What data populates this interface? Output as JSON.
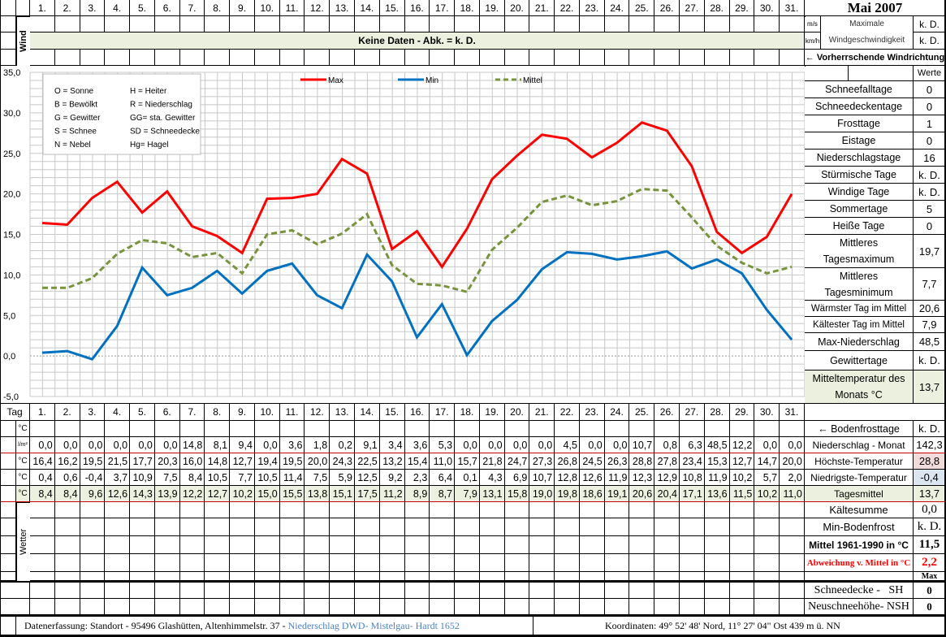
{
  "title": "Mai 2007",
  "days": [
    "1.",
    "2.",
    "3.",
    "4.",
    "5.",
    "6.",
    "7.",
    "8.",
    "9.",
    "10.",
    "11.",
    "12.",
    "13.",
    "14.",
    "15.",
    "16.",
    "17.",
    "18.",
    "19.",
    "20.",
    "21.",
    "22.",
    "23.",
    "24.",
    "25.",
    "26.",
    "27.",
    "28.",
    "29.",
    "30.",
    "31."
  ],
  "wind": {
    "label": "Wind",
    "nodata": "Keine Daten - Abk. = k. D.",
    "unit_ms": "m/s",
    "unit_kmh": "km/h",
    "max_label": "Maximale Windgeschwindigkeit",
    "max_ms": "k. D.",
    "max_kmh": "k. D.",
    "direction_label": "← Vorherrschende Windrichtung"
  },
  "chart_data": {
    "type": "line",
    "ylim": [
      -5,
      35
    ],
    "yticks": [
      "35,0",
      "30,0",
      "25,0",
      "20,0",
      "15,0",
      "10,0",
      "5,0",
      "0,0",
      "-5,0"
    ],
    "grid": true,
    "legend_placement": "top",
    "series": [
      {
        "name": "Max",
        "color": "#ff0000",
        "values": [
          16.4,
          16.2,
          19.5,
          21.5,
          17.7,
          20.3,
          16.0,
          14.8,
          12.7,
          19.4,
          19.5,
          20.0,
          24.3,
          22.5,
          13.2,
          15.4,
          11.0,
          15.7,
          21.8,
          24.7,
          27.3,
          26.8,
          24.5,
          26.3,
          28.8,
          27.8,
          23.4,
          15.3,
          12.7,
          14.7,
          20.0
        ]
      },
      {
        "name": "Min",
        "color": "#0070c0",
        "values": [
          0.4,
          0.6,
          -0.4,
          3.7,
          10.9,
          7.5,
          8.4,
          10.5,
          7.7,
          10.5,
          11.4,
          7.5,
          5.9,
          12.5,
          9.2,
          2.3,
          6.4,
          0.1,
          4.3,
          6.9,
          10.7,
          12.8,
          12.6,
          11.9,
          12.3,
          12.9,
          10.8,
          11.9,
          10.2,
          5.7,
          2.0
        ]
      },
      {
        "name": "Mittel",
        "color": "#77933c",
        "values": [
          8.4,
          8.4,
          9.6,
          12.6,
          14.3,
          13.9,
          12.2,
          12.7,
          10.2,
          15.0,
          15.5,
          13.8,
          15.1,
          17.5,
          11.2,
          8.9,
          8.7,
          7.9,
          13.1,
          15.8,
          19.0,
          19.8,
          18.6,
          19.1,
          20.6,
          20.4,
          17.1,
          13.6,
          11.5,
          10.2,
          11.0
        ]
      }
    ]
  },
  "key": [
    [
      "O = Sonne",
      "H = Heiter"
    ],
    [
      "B = Bewölkt",
      "R = Niederschlag"
    ],
    [
      "G = Gewitter",
      "GG= sta. Gewitter"
    ],
    [
      "S = Schnee",
      "SD = Schneedecke"
    ],
    [
      "N = Nebel",
      "Hg= Hagel"
    ]
  ],
  "stats_header": "Werte",
  "stats": [
    [
      "Schneefalltage",
      "0"
    ],
    [
      "Schneedeckentage",
      "0"
    ],
    [
      "Frosttage",
      "1"
    ],
    [
      "Eistage",
      "0"
    ],
    [
      "Niederschlagstage",
      "16"
    ],
    [
      "Stürmische Tage",
      "k. D."
    ],
    [
      "Windige Tage",
      "k. D."
    ],
    [
      "Sommertage",
      "5"
    ],
    [
      "Heiße Tage",
      "0"
    ],
    [
      "Mittleres Tagesmaximum",
      "19,7"
    ],
    [
      "Mittleres Tagesminimum",
      "7,7"
    ],
    [
      "Wärmster Tag im Mittel",
      "20,6"
    ],
    [
      "Kältester Tag im Mittel",
      "7,9"
    ],
    [
      "Max-Niederschlag",
      "48,5"
    ],
    [
      "Gewittertage",
      "k. D."
    ],
    [
      "Mitteltemperatur des Monats °C",
      "13,7"
    ]
  ],
  "table": {
    "tag_label": "Tag",
    "ground_unit": "°C",
    "ground_label": "← Bodenfrosttage",
    "ground_value": "k. D.",
    "rows": [
      {
        "unit": "l/m²",
        "label": "Niederschlag - Monat",
        "total": "142,3",
        "values": [
          "0,0",
          "0,0",
          "0,0",
          "0,0",
          "0,0",
          "0,0",
          "14,8",
          "8,1",
          "9,4",
          "0,0",
          "3,6",
          "1,8",
          "0,2",
          "9,1",
          "3,4",
          "3,6",
          "5,3",
          "0,0",
          "0,0",
          "0,0",
          "0,0",
          "4,5",
          "0,0",
          "0,0",
          "10,7",
          "0,8",
          "6,3",
          "48,5",
          "12,2",
          "0,0",
          "0,0"
        ]
      },
      {
        "unit": "°C",
        "label": "Höchste-Temperatur",
        "total": "28,8",
        "values": [
          "16,4",
          "16,2",
          "19,5",
          "21,5",
          "17,7",
          "20,3",
          "16,0",
          "14,8",
          "12,7",
          "19,4",
          "19,5",
          "20,0",
          "24,3",
          "22,5",
          "13,2",
          "15,4",
          "11,0",
          "15,7",
          "21,8",
          "24,7",
          "27,3",
          "26,8",
          "24,5",
          "26,3",
          "28,8",
          "27,8",
          "23,4",
          "15,3",
          "12,7",
          "14,7",
          "20,0"
        ]
      },
      {
        "unit": "°C",
        "label": "Niedrigste-Temperatur",
        "total": "-0,4",
        "values": [
          "0,4",
          "0,6",
          "-0,4",
          "3,7",
          "10,9",
          "7,5",
          "8,4",
          "10,5",
          "7,7",
          "10,5",
          "11,4",
          "7,5",
          "5,9",
          "12,5",
          "9,2",
          "2,3",
          "6,4",
          "0,1",
          "4,3",
          "6,9",
          "10,7",
          "12,8",
          "12,6",
          "11,9",
          "12,3",
          "12,9",
          "10,8",
          "11,9",
          "10,2",
          "5,7",
          "2,0"
        ]
      },
      {
        "unit": "°C",
        "label": "Tagesmittel",
        "total": "13,7",
        "values": [
          "8,4",
          "8,4",
          "9,6",
          "12,6",
          "14,3",
          "13,9",
          "12,2",
          "12,7",
          "10,2",
          "15,0",
          "15,5",
          "13,8",
          "15,1",
          "17,5",
          "11,2",
          "8,9",
          "8,7",
          "7,9",
          "13,1",
          "15,8",
          "19,0",
          "19,8",
          "18,6",
          "19,1",
          "20,6",
          "20,4",
          "17,1",
          "13,6",
          "11,5",
          "10,2",
          "11,0"
        ]
      }
    ]
  },
  "weather": {
    "label": "Wetter",
    "side": [
      [
        "Kältesumme",
        "0,0"
      ],
      [
        "Min-Bodenfrost",
        "k. D."
      ],
      [
        "Mittel 1961-1990 in °C",
        "11,5"
      ],
      [
        "Abweichung v. Mittel in °C",
        "2,2"
      ],
      [
        "",
        "Max"
      ]
    ],
    "snow": [
      [
        "Schneedecke -   SH",
        "0"
      ],
      [
        "Neuschneehöhe- NSH",
        "0"
      ]
    ]
  },
  "footer": {
    "left": "Datenerfassung:  Standort -  95496  Glashütten, Altenhimmelstr. 37 - ",
    "link": "Niederschlag DWD- Mistelgau- Hardt 1652",
    "right": "Koordinaten:  49° 52' 48' Nord,   11° 27' 04\" Ost   439 m ü. NN"
  }
}
